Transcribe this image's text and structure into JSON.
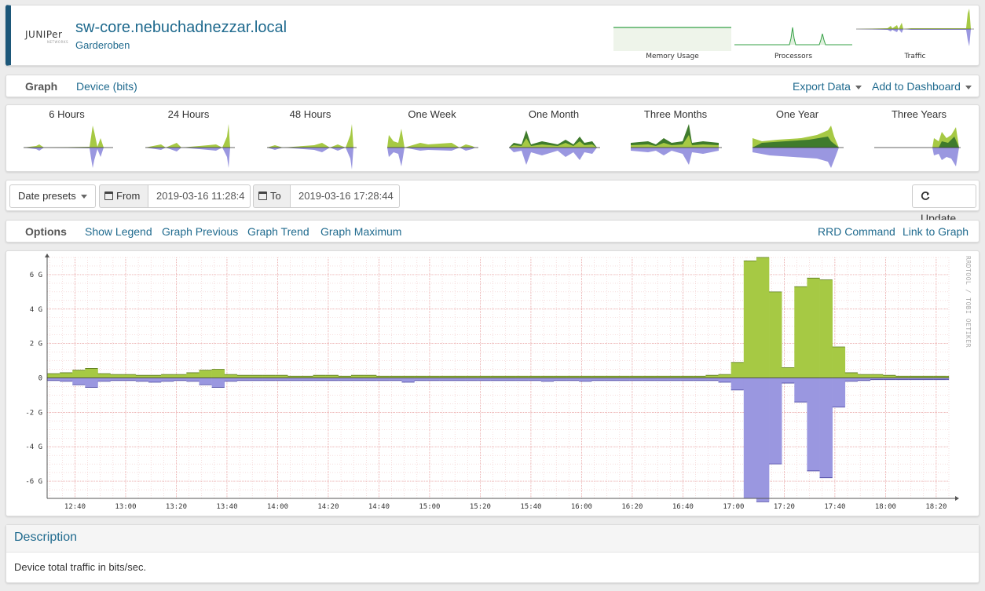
{
  "header": {
    "logo_text": "JUNIPer",
    "logo_subtext": "NETWORKS",
    "hostname": "sw-core.nebuchadnezzar.local",
    "location": "Garderoben",
    "minigraphs": [
      {
        "label": "Memory Usage"
      },
      {
        "label": "Processors"
      },
      {
        "label": "Traffic"
      }
    ]
  },
  "nav": {
    "title": "Graph",
    "subtitle": "Device (bits)",
    "export": "Export Data",
    "dashboard": "Add to Dashboard"
  },
  "periods": [
    "6 Hours",
    "24 Hours",
    "48 Hours",
    "One Week",
    "One Month",
    "Three Months",
    "One Year",
    "Three Years"
  ],
  "dates": {
    "presets": "Date presets",
    "from_label": "From",
    "from_value": "2019-03-16 11:28:4",
    "to_label": "To",
    "to_value": "2019-03-16 17:28:44",
    "update": "Update"
  },
  "options": {
    "title": "Options",
    "items": [
      "Show Legend",
      "Graph Previous",
      "Graph Trend",
      "Graph Maximum"
    ],
    "rrd": "RRD Command",
    "link": "Link to Graph"
  },
  "colors": {
    "in_fill": "#a6c944",
    "out_fill": "#9a97e0",
    "accent": "#1f6a8e",
    "header_bar": "#1d5779"
  },
  "chart_data": {
    "type": "area",
    "watermark": "RRDTOOL / TOBI OETIKER",
    "y_ticks": [
      "6 G",
      "4 G",
      "2 G",
      "0",
      "-2 G",
      "-4 G",
      "-6 G"
    ],
    "y_tick_values": [
      6,
      4,
      2,
      0,
      -2,
      -4,
      -6
    ],
    "ylim": [
      -7,
      7
    ],
    "x_ticks": [
      "12:40",
      "13:00",
      "13:20",
      "13:40",
      "14:00",
      "14:20",
      "14:40",
      "15:00",
      "15:20",
      "15:40",
      "16:00",
      "16:20",
      "16:40",
      "17:00",
      "17:20",
      "17:40",
      "18:00",
      "18:20"
    ],
    "x_start": "12:29",
    "x_end": "18:25",
    "series": [
      {
        "x": [
          "12:29",
          "12:34",
          "12:39",
          "12:44",
          "12:49",
          "12:54",
          "12:59",
          "13:04",
          "13:09",
          "13:14",
          "13:19",
          "13:24",
          "13:29",
          "13:34",
          "13:39",
          "13:44",
          "13:49",
          "13:54",
          "13:59",
          "14:04",
          "14:09",
          "14:14",
          "14:19",
          "14:24",
          "14:29",
          "14:34",
          "14:39",
          "14:44",
          "14:49",
          "14:54",
          "14:59",
          "15:04",
          "15:09",
          "15:14",
          "15:19",
          "15:24",
          "15:29",
          "15:34",
          "15:39",
          "15:44",
          "15:49",
          "15:54",
          "15:59",
          "16:04",
          "16:09",
          "16:14",
          "16:19",
          "16:24",
          "16:29",
          "16:34",
          "16:39",
          "16:44",
          "16:49",
          "16:54",
          "16:59",
          "17:04",
          "17:09",
          "17:14",
          "17:19",
          "17:24",
          "17:29",
          "17:34",
          "17:39",
          "17:44",
          "17:49",
          "17:54",
          "17:59",
          "18:04",
          "18:09",
          "18:14",
          "18:19",
          "18:24"
        ],
        "values": [
          0.25,
          0.3,
          0.45,
          0.55,
          0.25,
          0.2,
          0.2,
          0.15,
          0.15,
          0.2,
          0.2,
          0.3,
          0.45,
          0.5,
          0.2,
          0.15,
          0.15,
          0.15,
          0.15,
          0.1,
          0.1,
          0.15,
          0.15,
          0.1,
          0.15,
          0.15,
          0.1,
          0.1,
          0.1,
          0.1,
          0.1,
          0.1,
          0.1,
          0.1,
          0.1,
          0.1,
          0.1,
          0.1,
          0.1,
          0.1,
          0.1,
          0.1,
          0.1,
          0.1,
          0.1,
          0.1,
          0.1,
          0.1,
          0.1,
          0.1,
          0.1,
          0.1,
          0.15,
          0.2,
          0.9,
          6.8,
          7.0,
          5.0,
          0.6,
          5.3,
          5.8,
          5.7,
          1.8,
          0.3,
          0.2,
          0.2,
          0.15,
          0.1,
          0.1,
          0.1,
          0.1,
          0.1
        ]
      },
      {
        "x": [
          "12:29",
          "12:34",
          "12:39",
          "12:44",
          "12:49",
          "12:54",
          "12:59",
          "13:04",
          "13:09",
          "13:14",
          "13:19",
          "13:24",
          "13:29",
          "13:34",
          "13:39",
          "13:44",
          "13:49",
          "13:54",
          "13:59",
          "14:04",
          "14:09",
          "14:14",
          "14:19",
          "14:24",
          "14:29",
          "14:34",
          "14:39",
          "14:44",
          "14:49",
          "14:54",
          "14:59",
          "15:04",
          "15:09",
          "15:14",
          "15:19",
          "15:24",
          "15:29",
          "15:34",
          "15:39",
          "15:44",
          "15:49",
          "15:54",
          "15:59",
          "16:04",
          "16:09",
          "16:14",
          "16:19",
          "16:24",
          "16:29",
          "16:34",
          "16:39",
          "16:44",
          "16:49",
          "16:54",
          "16:59",
          "17:04",
          "17:09",
          "17:14",
          "17:19",
          "17:24",
          "17:29",
          "17:34",
          "17:39",
          "17:44",
          "17:49",
          "17:54",
          "17:59",
          "18:04",
          "18:09",
          "18:14",
          "18:19",
          "18:24"
        ],
        "values": [
          -0.15,
          -0.2,
          -0.4,
          -0.55,
          -0.2,
          -0.15,
          -0.15,
          -0.2,
          -0.25,
          -0.2,
          -0.15,
          -0.2,
          -0.4,
          -0.55,
          -0.2,
          -0.15,
          -0.15,
          -0.15,
          -0.15,
          -0.15,
          -0.15,
          -0.15,
          -0.15,
          -0.15,
          -0.15,
          -0.15,
          -0.15,
          -0.15,
          -0.25,
          -0.15,
          -0.15,
          -0.15,
          -0.15,
          -0.15,
          -0.15,
          -0.15,
          -0.15,
          -0.15,
          -0.15,
          -0.2,
          -0.15,
          -0.15,
          -0.2,
          -0.15,
          -0.15,
          -0.15,
          -0.15,
          -0.15,
          -0.15,
          -0.15,
          -0.15,
          -0.15,
          -0.15,
          -0.25,
          -0.7,
          -7.0,
          -7.2,
          -5.0,
          -0.3,
          -1.4,
          -5.4,
          -5.8,
          -1.7,
          -0.2,
          -0.15,
          -0.1,
          -0.1,
          -0.1,
          -0.1,
          -0.1,
          -0.1,
          -0.1
        ]
      }
    ]
  },
  "description": {
    "title": "Description",
    "text": "Device total traffic in bits/sec."
  }
}
